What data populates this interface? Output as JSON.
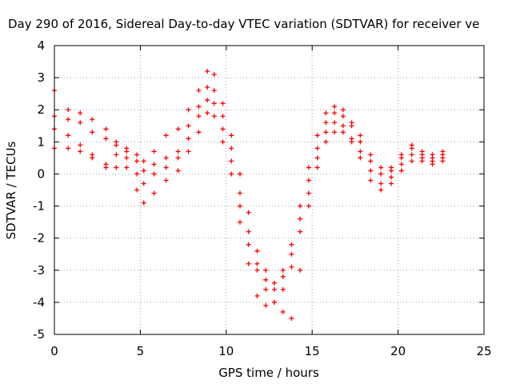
{
  "chart_data": {
    "type": "scatter",
    "title": "Day 290 of 2016, Sidereal Day-to-day VTEC variation (SDTVAR) for receiver ve",
    "xlabel": "GPS time / hours",
    "ylabel": "SDTVAR / TECUs",
    "xlim": [
      0,
      25
    ],
    "ylim": [
      -5,
      4
    ],
    "xticks": [
      0,
      5,
      10,
      15,
      20,
      25
    ],
    "yticks": [
      -5,
      -4,
      -3,
      -2,
      -1,
      0,
      1,
      2,
      3,
      4
    ],
    "grid": true,
    "legend": "none",
    "marker": "plus",
    "color": "#ff0000",
    "series": [
      {
        "x": [
          0.0,
          0.8,
          1.5,
          2.2,
          3.0,
          3.6,
          4.2,
          4.8,
          5.2,
          5.8,
          6.5,
          7.2,
          7.8,
          8.4,
          8.9,
          9.3,
          9.8,
          10.3,
          10.8,
          11.3,
          11.8,
          12.3,
          12.8,
          13.3,
          13.8,
          14.3,
          14.8,
          15.3,
          15.8,
          16.3,
          16.8,
          17.3,
          17.8,
          18.4,
          19.0,
          19.6,
          20.2,
          20.8,
          21.4,
          22.0,
          22.6
        ],
        "y": [
          2.6,
          2.0,
          1.9,
          1.7,
          1.4,
          1.0,
          0.8,
          0.6,
          0.4,
          0.7,
          1.2,
          1.4,
          2.0,
          2.6,
          3.2,
          3.1,
          2.2,
          1.2,
          0.0,
          -1.2,
          -2.4,
          -3.0,
          -3.4,
          -3.0,
          -2.2,
          -1.0,
          0.2,
          1.2,
          1.9,
          2.1,
          2.0,
          1.6,
          1.2,
          0.6,
          0.2,
          0.1,
          0.5,
          0.9,
          0.7,
          0.6,
          0.7
        ]
      },
      {
        "x": [
          0.0,
          0.8,
          1.5,
          2.2,
          3.0,
          3.6,
          4.2,
          4.8,
          5.2,
          5.8,
          6.5,
          7.2,
          7.8,
          8.4,
          8.9,
          9.3,
          9.8,
          10.3,
          10.8,
          11.3,
          11.8,
          12.3,
          12.8,
          13.3,
          13.8,
          14.3,
          14.8,
          15.3,
          15.8,
          16.3,
          16.8,
          17.3,
          17.8,
          18.4,
          19.0,
          19.6,
          20.2,
          20.8,
          21.4,
          22.0,
          22.6
        ],
        "y": [
          1.8,
          1.7,
          1.6,
          1.3,
          1.1,
          0.9,
          0.7,
          0.4,
          0.1,
          0.3,
          0.5,
          0.7,
          1.5,
          2.1,
          2.7,
          2.6,
          1.8,
          0.8,
          -0.6,
          -1.8,
          -2.8,
          -3.3,
          -3.6,
          -3.2,
          -2.5,
          -1.4,
          -0.2,
          0.8,
          1.6,
          1.9,
          1.8,
          1.5,
          1.0,
          0.4,
          0.0,
          0.2,
          0.6,
          0.8,
          0.6,
          0.5,
          0.6
        ]
      },
      {
        "x": [
          0.0,
          0.8,
          1.5,
          2.2,
          3.0,
          3.6,
          4.2,
          4.8,
          5.2,
          5.8,
          6.5,
          7.2,
          7.8,
          8.4,
          8.9,
          9.3,
          9.8,
          10.3,
          10.8,
          11.3,
          11.8,
          12.3,
          12.8,
          13.3,
          13.8,
          14.3,
          14.8,
          15.3,
          15.8,
          16.3,
          16.8,
          17.3,
          17.8,
          18.4,
          19.0,
          19.6,
          20.2,
          20.8,
          21.4,
          22.0,
          22.6
        ],
        "y": [
          1.4,
          1.2,
          0.9,
          0.6,
          0.3,
          0.6,
          0.5,
          0.0,
          -0.3,
          0.0,
          0.2,
          0.5,
          1.1,
          1.8,
          2.3,
          2.2,
          1.4,
          0.4,
          -1.0,
          -2.2,
          -3.0,
          -3.6,
          -4.0,
          -3.6,
          -2.9,
          -1.8,
          -0.6,
          0.5,
          1.3,
          1.6,
          1.5,
          1.1,
          0.7,
          0.1,
          -0.3,
          -0.1,
          0.3,
          0.6,
          0.5,
          0.4,
          0.5
        ]
      },
      {
        "x": [
          0.0,
          0.8,
          1.5,
          2.2,
          3.0,
          3.6,
          4.2,
          4.8,
          5.2,
          5.8,
          6.5,
          7.2,
          7.8,
          8.4,
          8.9,
          9.3,
          9.8,
          10.3,
          10.8,
          11.3,
          11.8,
          12.3,
          12.8,
          13.3,
          13.8,
          14.3,
          14.8,
          15.3,
          15.8,
          16.3,
          16.8,
          17.3,
          17.8,
          18.4,
          19.0,
          19.6,
          20.2,
          20.8,
          21.4,
          22.0,
          22.6
        ],
        "y": [
          0.8,
          0.8,
          0.7,
          0.5,
          0.2,
          0.2,
          0.2,
          -0.5,
          -0.9,
          -0.6,
          -0.2,
          0.1,
          0.7,
          1.3,
          1.9,
          1.8,
          1.0,
          0.0,
          -1.5,
          -2.8,
          -3.8,
          -4.1,
          -4.0,
          -4.3,
          -4.5,
          -3.0,
          -1.0,
          0.2,
          1.0,
          1.3,
          1.3,
          1.0,
          0.5,
          -0.2,
          -0.5,
          -0.3,
          0.1,
          0.4,
          0.4,
          0.3,
          0.4
        ]
      }
    ]
  }
}
